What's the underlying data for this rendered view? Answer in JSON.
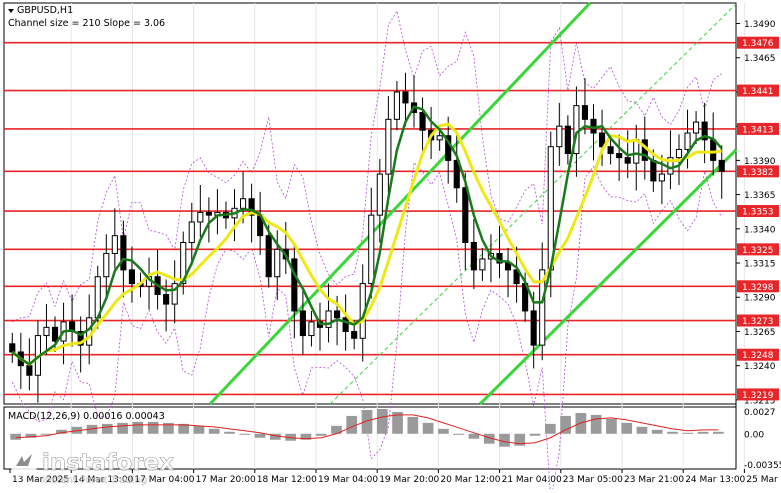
{
  "header": {
    "symbol": "GBPUSD,H1",
    "channel_info": "Channel size = 210 Slope = 3.06"
  },
  "watermark": {
    "brand": "instaforex",
    "tagline": "Instant Forex Trading"
  },
  "colors": {
    "level_line": "#e8262a",
    "ma_slow": "#f0e816",
    "ma_fast": "#1a7a1a",
    "channel": "#39d63a",
    "bands": "#b44ad6",
    "candle": "#000000",
    "macd_hist": "#9a9a9a",
    "macd_signal": "#e02020"
  },
  "chart_data": [
    {
      "type": "candlestick",
      "title": "GBPUSD,H1",
      "y_axis_ticks": [
        "1.3490",
        "1.3465",
        "1.3440",
        "1.3415",
        "1.3390",
        "1.3365",
        "1.3340",
        "1.3315",
        "1.3290",
        "1.3265",
        "1.3240",
        "1.3215"
      ],
      "x_axis_ticks": [
        "13 Mar 2025",
        "14 Mar 13:00",
        "17 Mar 04:00",
        "17 Mar 20:00",
        "18 Mar 12:00",
        "19 Mar 04:00",
        "19 Mar 20:00",
        "20 Mar 12:00",
        "21 Mar 04:00",
        "23 Mar 05:00",
        "23 Mar 21:00",
        "24 Mar 13:00",
        "25 Mar 05:00"
      ],
      "horizontal_levels": [
        1.3476,
        1.3441,
        1.3413,
        1.3382,
        1.3353,
        1.3325,
        1.3298,
        1.3273,
        1.3248,
        1.3219
      ],
      "level_labels": [
        "1.3476",
        "1.3441",
        "1.3413",
        "1.3382",
        "1.3353",
        "1.3325",
        "1.3298",
        "1.3273",
        "1.3248",
        "1.3219"
      ],
      "current_price_label": "1.3382",
      "ylim": [
        1.3212,
        1.3505
      ],
      "price_path_close": [
        1.325,
        1.324,
        1.3233,
        1.3262,
        1.3268,
        1.3258,
        1.3272,
        1.3265,
        1.3255,
        1.3275,
        1.3305,
        1.3322,
        1.3335,
        1.331,
        1.33,
        1.3298,
        1.3305,
        1.3292,
        1.3285,
        1.33,
        1.333,
        1.3345,
        1.3352,
        1.335,
        1.3352,
        1.3348,
        1.3355,
        1.3362,
        1.335,
        1.3335,
        1.3305,
        1.3325,
        1.3318,
        1.328,
        1.3262,
        1.3272,
        1.3268,
        1.328,
        1.3275,
        1.3265,
        1.326,
        1.33,
        1.335,
        1.338,
        1.342,
        1.344,
        1.3432,
        1.3425,
        1.3412,
        1.3405,
        1.3408,
        1.339,
        1.337,
        1.333,
        1.331,
        1.3318,
        1.3322,
        1.3315,
        1.331,
        1.33,
        1.328,
        1.3255,
        1.331,
        1.34,
        1.3415,
        1.3395,
        1.343,
        1.342,
        1.341,
        1.34,
        1.3395,
        1.3392,
        1.3388,
        1.3405,
        1.339,
        1.3375,
        1.338,
        1.3392,
        1.3398,
        1.341,
        1.3418,
        1.3405,
        1.339,
        1.3382
      ],
      "channel_slope_label": "Slope = 3.06"
    },
    {
      "type": "line",
      "title": "MACD(12,26,9) 0.00016 0.00043",
      "y_axis_ticks": [
        "0.0027",
        "0.00",
        "-0.00355"
      ],
      "ylim": [
        -0.00355,
        0.0027
      ],
      "series": [
        {
          "name": "MACD",
          "values": [
            -0.0006,
            -0.0004,
            0.0,
            0.0004,
            0.0007,
            0.0009,
            0.001,
            0.0011,
            0.0012,
            0.0012,
            0.0011,
            0.001,
            0.0008,
            0.0005,
            0.0002,
            -0.0001,
            -0.0004,
            -0.0006,
            -0.0007,
            -0.0006,
            -0.0002,
            0.0008,
            0.0018,
            0.0024,
            0.0025,
            0.0022,
            0.0017,
            0.0011,
            0.0005,
            0.0,
            -0.0005,
            -0.001,
            -0.0013,
            -0.0012,
            -0.0002,
            0.001,
            0.0018,
            0.0021,
            0.0019,
            0.0015,
            0.0011,
            0.0007,
            0.0004,
            0.0002,
            0.0001,
            0.0002,
            0.0002
          ]
        },
        {
          "name": "Signal",
          "values": [
            -0.0004,
            -0.0003,
            -0.0002,
            0.0001,
            0.0003,
            0.0005,
            0.0007,
            0.0008,
            0.0009,
            0.0009,
            0.0009,
            0.0009,
            0.0008,
            0.0007,
            0.0005,
            0.0003,
            0.0001,
            -0.0002,
            -0.0004,
            -0.0005,
            -0.0004,
            0.0,
            0.0007,
            0.0013,
            0.0017,
            0.0019,
            0.0019,
            0.0016,
            0.0011,
            0.0006,
            0.0001,
            -0.0004,
            -0.0008,
            -0.001,
            -0.0009,
            -0.0004,
            0.0004,
            0.0011,
            0.0015,
            0.0016,
            0.0014,
            0.0011,
            0.0008,
            0.0005,
            0.0003,
            0.0004,
            0.0004
          ]
        }
      ]
    }
  ]
}
